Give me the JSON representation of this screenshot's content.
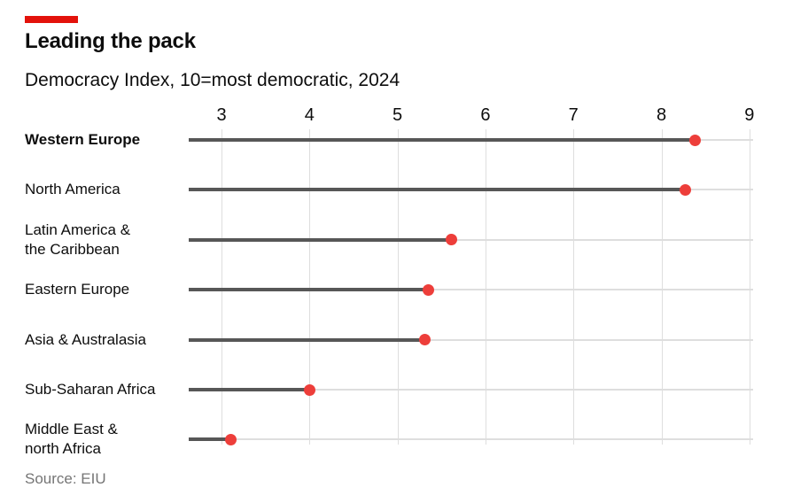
{
  "header": {
    "title": "Leading the pack",
    "subtitle": "Democracy Index, 10=most democratic, 2024"
  },
  "footer": {
    "source": "Source: EIU"
  },
  "colors": {
    "accent_red": "#E3120B",
    "dot_red": "#ED3E3A",
    "line_dark": "#575757",
    "grid_light": "#DEDEDE",
    "text": "#0D0D0D",
    "source_gray": "#757575"
  },
  "chart_data": {
    "type": "bar",
    "variant": "lollipop-dot",
    "orientation": "horizontal",
    "title": "Leading the pack",
    "subtitle": "Democracy Index, 10=most democratic, 2024",
    "xlabel": "",
    "ylabel": "",
    "axis_position": "top",
    "grid": "vertical-only",
    "xticks": [
      3,
      4,
      5,
      6,
      7,
      8,
      9
    ],
    "xlim": [
      2.63,
      9.05
    ],
    "legend": "none",
    "source": "Source: EIU",
    "categories": [
      {
        "label": "Western Europe",
        "bold": true
      },
      {
        "label": "North America",
        "bold": false
      },
      {
        "label": "Latin America &\nthe Caribbean",
        "bold": false
      },
      {
        "label": "Eastern Europe",
        "bold": false
      },
      {
        "label": "Asia & Australasia",
        "bold": false
      },
      {
        "label": "Sub-Saharan Africa",
        "bold": false
      },
      {
        "label": "Middle East &\nnorth Africa",
        "bold": false
      }
    ],
    "series": [
      {
        "name": "Democracy Index 2024",
        "values": [
          8.38,
          8.27,
          5.61,
          5.35,
          5.31,
          4.0,
          3.11
        ]
      }
    ],
    "values": [
      8.38,
      8.27,
      5.61,
      5.35,
      5.31,
      4.0,
      3.11
    ]
  }
}
